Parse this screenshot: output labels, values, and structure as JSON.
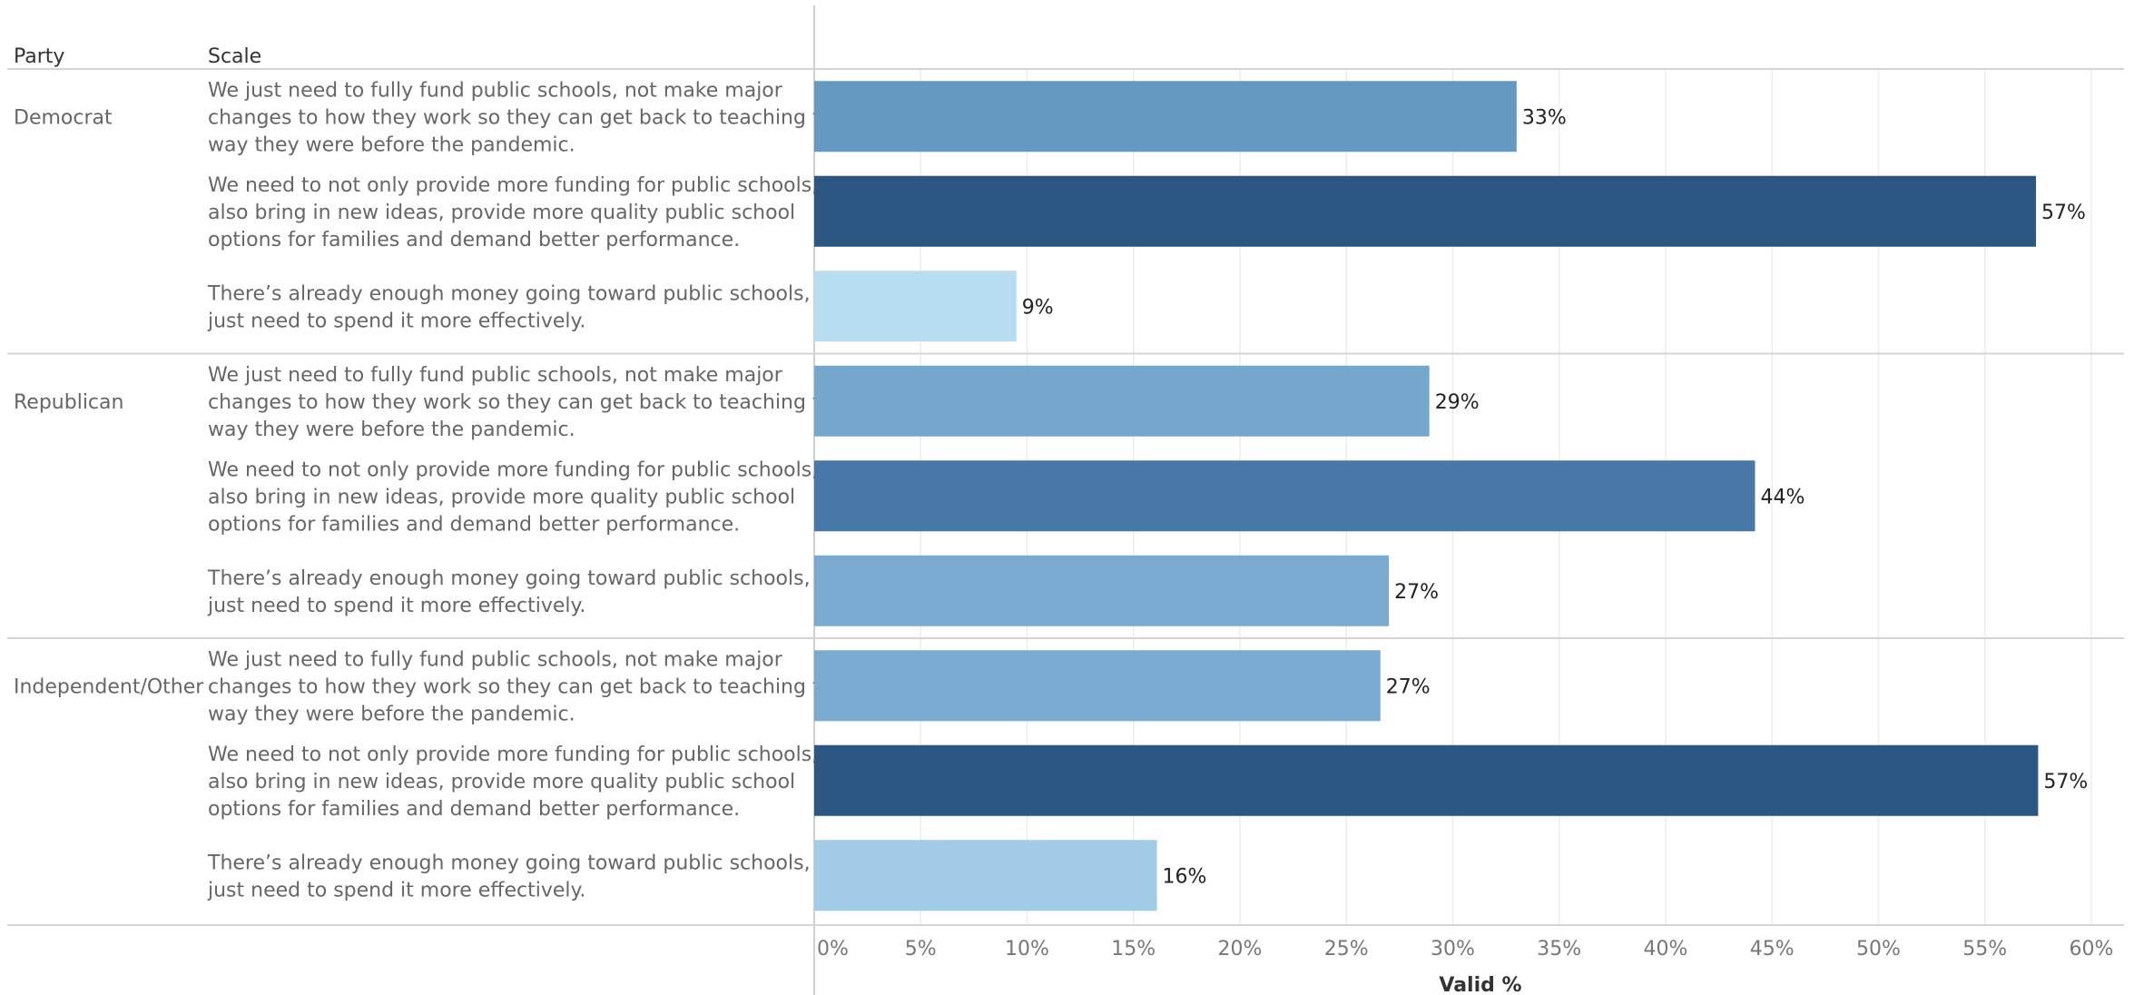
{
  "headers": {
    "party": "Party",
    "scale": "Scale"
  },
  "colors": {
    "separator": "#d4d4d4",
    "grid": "#ededed",
    "axis": "#cfcfcf"
  },
  "chart_data": {
    "type": "bar",
    "orientation": "horizontal",
    "xlabel": "Valid %",
    "xlim": [
      0,
      61.5
    ],
    "x_ticks": [
      "0%",
      "5%",
      "10%",
      "15%",
      "20%",
      "25%",
      "30%",
      "35%",
      "40%",
      "45%",
      "50%",
      "55%",
      "60%"
    ],
    "x_tick_values": [
      0,
      5,
      10,
      15,
      20,
      25,
      30,
      35,
      40,
      45,
      50,
      55,
      60
    ],
    "grid": true,
    "groups": [
      {
        "party": "Democrat",
        "rows": [
          {
            "scale": [
              "We just need to fully fund public schools, not make major",
              "changes to how they work so they can get back to teaching the",
              "way they were before the pandemic."
            ],
            "value": 33,
            "label": "33%",
            "color": "#6699c2"
          },
          {
            "scale": [
              "We need to not only provide more funding for public schools, but",
              "also bring in new ideas, provide more quality public school",
              "options for families and demand better performance."
            ],
            "value": 57.4,
            "label": "57%",
            "color": "#2c5784"
          },
          {
            "scale": [
              "There’s already enough money going toward public schools, we",
              "just need to spend it more effectively."
            ],
            "value": 9.5,
            "label": "9%",
            "color": "#b9ddf0"
          }
        ]
      },
      {
        "party": "Republican",
        "rows": [
          {
            "scale": [
              "We just need to fully fund public schools, not make major",
              "changes to how they work so they can get back to teaching the",
              "way they were before the pandemic."
            ],
            "value": 28.9,
            "label": "29%",
            "color": "#75a7cc"
          },
          {
            "scale": [
              "We need to not only provide more funding for public schools, but",
              "also bring in new ideas, provide more quality public school",
              "options for families and demand better performance."
            ],
            "value": 44.2,
            "label": "44%",
            "color": "#4878a8"
          },
          {
            "scale": [
              "There’s already enough money going toward public schools, we",
              "just need to spend it more effectively."
            ],
            "value": 27,
            "label": "27%",
            "color": "#7aaad0"
          }
        ]
      },
      {
        "party": "Independent/Other",
        "rows": [
          {
            "scale": [
              "We just need to fully fund public schools, not make major",
              "changes to how they work so they can get back to teaching the",
              "way they were before the pandemic."
            ],
            "value": 26.6,
            "label": "27%",
            "color": "#7aaad0"
          },
          {
            "scale": [
              "We need to not only provide more funding for public schools, but",
              "also bring in new ideas, provide more quality public school",
              "options for families and demand better performance."
            ],
            "value": 57.5,
            "label": "57%",
            "color": "#2c5784"
          },
          {
            "scale": [
              "There’s already enough money going toward public schools, we",
              "just need to spend it more effectively."
            ],
            "value": 16.1,
            "label": "16%",
            "color": "#a2cbe7"
          }
        ]
      }
    ]
  }
}
